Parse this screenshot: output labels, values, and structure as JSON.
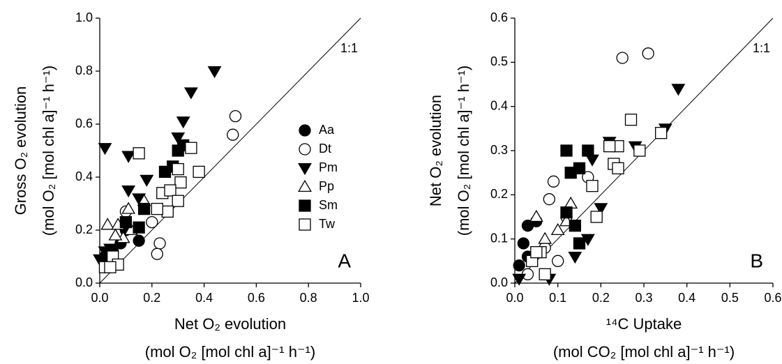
{
  "chart_data": [
    {
      "type": "scatter",
      "xlabel": [
        "Net O₂ evolution",
        "(mol O₂ [mol chl a]⁻¹ h⁻¹)"
      ],
      "ylabel": [
        "Gross O₂ evolution",
        "(mol O₂ [mol chl a]⁻¹ h⁻¹)"
      ],
      "annotations": [
        "1:1"
      ],
      "panel_label": "A",
      "identity_line": true,
      "legend": "center-right",
      "xlim": [
        0,
        1
      ],
      "ylim": [
        0,
        1
      ],
      "xticks": [
        {
          "value": 0,
          "label": "0.0"
        },
        0.2,
        0.4,
        0.6,
        0.8,
        {
          "value": 1,
          "label": "1.0"
        }
      ],
      "yticks": [
        {
          "value": 0,
          "label": "0.0"
        },
        0.2,
        0.4,
        0.6,
        0.8,
        {
          "value": 1,
          "label": "1.0"
        }
      ],
      "series": [
        {
          "name": "Aa",
          "marker": "circle",
          "filled": true,
          "color": "#000000",
          "x": [
            0.02,
            0.05,
            0.08,
            0.15,
            0.1
          ],
          "y": [
            0.1,
            0.12,
            0.15,
            0.16,
            0.2
          ]
        },
        {
          "name": "Dt",
          "marker": "circle",
          "filled": false,
          "color": "#000000",
          "x": [
            0.52,
            0.51,
            0.23,
            0.22,
            0.2,
            0.1
          ],
          "y": [
            0.63,
            0.56,
            0.15,
            0.11,
            0.23,
            0.27
          ]
        },
        {
          "name": "Pm",
          "marker": "triangle-down",
          "filled": true,
          "color": "#000000",
          "x": [
            0.02,
            0.11,
            0.44,
            0.35,
            0.32,
            0.3,
            0.18,
            0.11,
            0.15,
            0.02,
            0.0,
            0.04
          ],
          "y": [
            0.51,
            0.48,
            0.8,
            0.72,
            0.61,
            0.55,
            0.39,
            0.35,
            0.32,
            0.12,
            0.09,
            0.13
          ]
        },
        {
          "name": "Pp",
          "marker": "triangle-up",
          "filled": false,
          "color": "#000000",
          "x": [
            0.03,
            0.07,
            0.11,
            0.17,
            0.09,
            0.12,
            0.06
          ],
          "y": [
            0.22,
            0.22,
            0.28,
            0.31,
            0.17,
            0.2,
            0.18
          ]
        },
        {
          "name": "Sm",
          "marker": "square",
          "filled": true,
          "color": "#000000",
          "x": [
            0.3,
            0.25,
            0.17,
            0.15,
            0.1,
            0.32,
            0.28
          ],
          "y": [
            0.5,
            0.42,
            0.28,
            0.21,
            0.23,
            0.52,
            0.44
          ]
        },
        {
          "name": "Tw",
          "marker": "square",
          "filled": false,
          "color": "#000000",
          "x": [
            0.15,
            0.35,
            0.38,
            0.3,
            0.31,
            0.24,
            0.27,
            0.3,
            0.26,
            0.22,
            0.05,
            0.07,
            0.02,
            0.04
          ],
          "y": [
            0.49,
            0.51,
            0.42,
            0.43,
            0.38,
            0.34,
            0.35,
            0.31,
            0.27,
            0.28,
            0.1,
            0.07,
            0.06,
            0.06
          ]
        }
      ]
    },
    {
      "type": "scatter",
      "xlabel": [
        "¹⁴C Uptake",
        "(mol CO₂ [mol chl a]⁻¹ h⁻¹)"
      ],
      "ylabel": [
        "Net O₂ evolution",
        "(mol O₂ [mol chl a]⁻¹ h⁻¹)"
      ],
      "annotations": [
        "1:1"
      ],
      "panel_label": "B",
      "identity_line": true,
      "xlim": [
        0,
        0.6
      ],
      "ylim": [
        0,
        0.6
      ],
      "xticks": [
        {
          "value": 0,
          "label": "0.0"
        },
        0.1,
        0.2,
        0.3,
        0.4,
        0.5,
        0.6
      ],
      "yticks": [
        {
          "value": 0,
          "label": "0.0"
        },
        0.1,
        0.2,
        0.3,
        0.4,
        0.5,
        0.6
      ],
      "series": [
        {
          "marker": "circle",
          "filled": true,
          "color": "#000000",
          "x": [
            0.01,
            0.02,
            0.03,
            0.05,
            0.03
          ],
          "y": [
            0.04,
            0.09,
            0.13,
            0.14,
            0.06
          ]
        },
        {
          "marker": "circle",
          "filled": false,
          "color": "#000000",
          "x": [
            0.25,
            0.31,
            0.09,
            0.08,
            0.17,
            0.1,
            0.07,
            0.03,
            0.12
          ],
          "y": [
            0.51,
            0.52,
            0.23,
            0.19,
            0.24,
            0.05,
            0.08,
            0.02,
            0.15
          ]
        },
        {
          "marker": "triangle-down",
          "filled": true,
          "color": "#000000",
          "x": [
            0.38,
            0.35,
            0.28,
            0.22,
            0.18,
            0.2,
            0.17,
            0.14,
            0.01,
            0.08
          ],
          "y": [
            0.44,
            0.35,
            0.31,
            0.32,
            0.28,
            0.17,
            0.1,
            0.06,
            0.01,
            0.01
          ]
        },
        {
          "marker": "triangle-up",
          "filled": false,
          "color": "#000000",
          "x": [
            0.13,
            0.05,
            0.1,
            0.12,
            0.07
          ],
          "y": [
            0.18,
            0.15,
            0.12,
            0.14,
            0.1
          ]
        },
        {
          "marker": "square",
          "filled": true,
          "color": "#000000",
          "x": [
            0.12,
            0.15,
            0.17,
            0.13,
            0.14,
            0.12,
            0.15
          ],
          "y": [
            0.3,
            0.26,
            0.3,
            0.25,
            0.13,
            0.16,
            0.09
          ]
        },
        {
          "marker": "square",
          "filled": false,
          "color": "#000000",
          "x": [
            0.27,
            0.34,
            0.29,
            0.24,
            0.22,
            0.23,
            0.24,
            0.18,
            0.19,
            0.06,
            0.07,
            0.04,
            0.05
          ],
          "y": [
            0.37,
            0.34,
            0.3,
            0.31,
            0.31,
            0.27,
            0.26,
            0.22,
            0.15,
            0.07,
            0.02,
            0.05,
            0.07
          ]
        }
      ]
    }
  ]
}
